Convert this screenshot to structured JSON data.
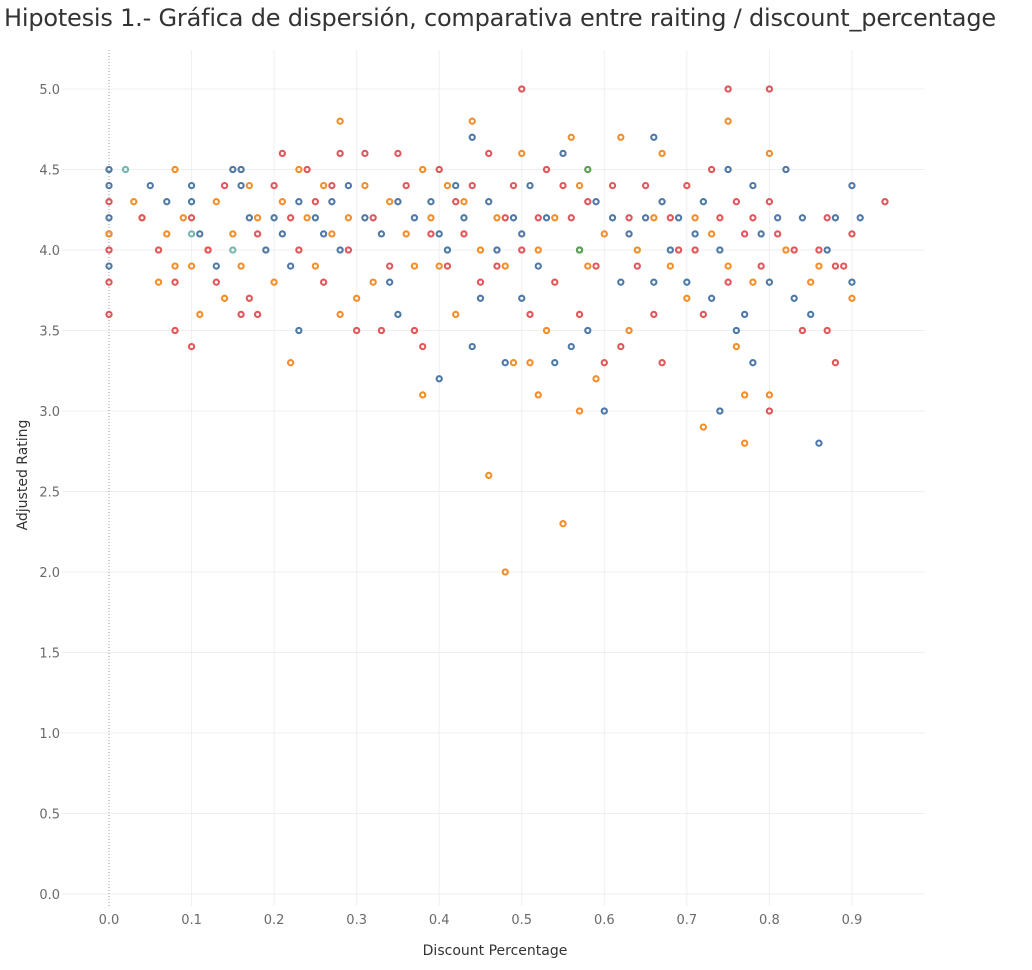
{
  "chart_data": {
    "type": "scatter",
    "title": "Hipotesis 1.- Gráfica de dispersión, comparativa entre raiting / discount_percentage",
    "xlabel": "Discount Percentage",
    "ylabel": "Adjusted Rating",
    "xlim": [
      -0.05,
      0.99
    ],
    "ylim": [
      -0.05,
      5.25
    ],
    "x_ticks": [
      "0.0",
      "0.1",
      "0.2",
      "0.3",
      "0.4",
      "0.5",
      "0.6",
      "0.7",
      "0.8",
      "0.9"
    ],
    "y_ticks": [
      "0.0",
      "0.5",
      "1.0",
      "1.5",
      "2.0",
      "2.5",
      "3.0",
      "3.5",
      "4.0",
      "4.5",
      "5.0"
    ],
    "grid": true,
    "legend": "none",
    "colors": {
      "blue": "#4e79a7",
      "orange": "#f28e2b",
      "red": "#e15759",
      "teal": "#76b7b2",
      "green": "#59a14f"
    },
    "series": [
      {
        "color": "blue",
        "points": [
          [
            0,
            4.5
          ],
          [
            0,
            4.4
          ],
          [
            0,
            4.2
          ],
          [
            0,
            4.1
          ],
          [
            0,
            3.9
          ],
          [
            0.05,
            4.4
          ],
          [
            0.07,
            4.3
          ],
          [
            0.1,
            4.4
          ],
          [
            0.1,
            4.3
          ],
          [
            0.11,
            4.1
          ],
          [
            0.13,
            3.9
          ],
          [
            0.15,
            4.5
          ],
          [
            0.16,
            4.5
          ],
          [
            0.16,
            4.4
          ],
          [
            0.17,
            4.2
          ],
          [
            0.19,
            4.0
          ],
          [
            0.2,
            4.2
          ],
          [
            0.21,
            4.1
          ],
          [
            0.22,
            3.9
          ],
          [
            0.23,
            4.3
          ],
          [
            0.23,
            3.5
          ],
          [
            0.25,
            4.2
          ],
          [
            0.26,
            4.1
          ],
          [
            0.27,
            4.3
          ],
          [
            0.28,
            4.0
          ],
          [
            0.29,
            4.4
          ],
          [
            0.31,
            4.2
          ],
          [
            0.33,
            4.1
          ],
          [
            0.34,
            3.8
          ],
          [
            0.35,
            4.3
          ],
          [
            0.35,
            3.6
          ],
          [
            0.37,
            4.2
          ],
          [
            0.39,
            4.3
          ],
          [
            0.4,
            4.1
          ],
          [
            0.4,
            3.2
          ],
          [
            0.41,
            4.0
          ],
          [
            0.42,
            4.4
          ],
          [
            0.43,
            4.2
          ],
          [
            0.44,
            3.4
          ],
          [
            0.44,
            4.7
          ],
          [
            0.45,
            3.7
          ],
          [
            0.46,
            4.3
          ],
          [
            0.47,
            4.0
          ],
          [
            0.48,
            3.3
          ],
          [
            0.49,
            4.2
          ],
          [
            0.5,
            4.1
          ],
          [
            0.5,
            3.7
          ],
          [
            0.51,
            4.4
          ],
          [
            0.52,
            3.9
          ],
          [
            0.53,
            4.2
          ],
          [
            0.54,
            3.3
          ],
          [
            0.55,
            4.6
          ],
          [
            0.56,
            3.4
          ],
          [
            0.57,
            4.0
          ],
          [
            0.58,
            3.5
          ],
          [
            0.59,
            4.3
          ],
          [
            0.6,
            3.0
          ],
          [
            0.61,
            4.2
          ],
          [
            0.62,
            3.8
          ],
          [
            0.63,
            4.1
          ],
          [
            0.65,
            4.2
          ],
          [
            0.66,
            4.7
          ],
          [
            0.66,
            3.8
          ],
          [
            0.67,
            4.3
          ],
          [
            0.68,
            4.0
          ],
          [
            0.69,
            4.2
          ],
          [
            0.7,
            3.8
          ],
          [
            0.71,
            4.1
          ],
          [
            0.72,
            4.3
          ],
          [
            0.73,
            3.7
          ],
          [
            0.74,
            3.0
          ],
          [
            0.74,
            4.0
          ],
          [
            0.75,
            4.5
          ],
          [
            0.76,
            3.5
          ],
          [
            0.77,
            3.6
          ],
          [
            0.78,
            4.4
          ],
          [
            0.78,
            3.3
          ],
          [
            0.79,
            4.1
          ],
          [
            0.8,
            3.8
          ],
          [
            0.81,
            4.2
          ],
          [
            0.82,
            4.5
          ],
          [
            0.83,
            3.7
          ],
          [
            0.84,
            4.2
          ],
          [
            0.85,
            3.6
          ],
          [
            0.86,
            2.8
          ],
          [
            0.87,
            4.0
          ],
          [
            0.88,
            4.2
          ],
          [
            0.9,
            4.4
          ],
          [
            0.9,
            3.8
          ],
          [
            0.91,
            4.2
          ]
        ]
      },
      {
        "color": "orange",
        "points": [
          [
            0,
            4.1
          ],
          [
            0.03,
            4.3
          ],
          [
            0.04,
            4.2
          ],
          [
            0.06,
            3.8
          ],
          [
            0.07,
            4.1
          ],
          [
            0.08,
            4.5
          ],
          [
            0.08,
            3.9
          ],
          [
            0.09,
            4.2
          ],
          [
            0.1,
            3.9
          ],
          [
            0.11,
            3.6
          ],
          [
            0.12,
            4.0
          ],
          [
            0.13,
            4.3
          ],
          [
            0.14,
            3.7
          ],
          [
            0.15,
            4.1
          ],
          [
            0.16,
            3.9
          ],
          [
            0.17,
            4.4
          ],
          [
            0.18,
            4.2
          ],
          [
            0.2,
            3.8
          ],
          [
            0.21,
            4.3
          ],
          [
            0.22,
            3.3
          ],
          [
            0.23,
            4.5
          ],
          [
            0.24,
            4.2
          ],
          [
            0.25,
            3.9
          ],
          [
            0.26,
            4.4
          ],
          [
            0.27,
            4.1
          ],
          [
            0.28,
            4.8
          ],
          [
            0.28,
            3.6
          ],
          [
            0.29,
            4.2
          ],
          [
            0.3,
            3.7
          ],
          [
            0.31,
            4.4
          ],
          [
            0.32,
            3.8
          ],
          [
            0.34,
            4.3
          ],
          [
            0.36,
            4.1
          ],
          [
            0.37,
            3.9
          ],
          [
            0.38,
            3.1
          ],
          [
            0.38,
            4.5
          ],
          [
            0.39,
            4.2
          ],
          [
            0.4,
            3.9
          ],
          [
            0.41,
            4.4
          ],
          [
            0.42,
            3.6
          ],
          [
            0.43,
            4.3
          ],
          [
            0.44,
            4.8
          ],
          [
            0.45,
            4.0
          ],
          [
            0.46,
            2.6
          ],
          [
            0.47,
            4.2
          ],
          [
            0.48,
            2.0
          ],
          [
            0.48,
            3.9
          ],
          [
            0.49,
            3.3
          ],
          [
            0.5,
            4.6
          ],
          [
            0.51,
            3.3
          ],
          [
            0.52,
            4.0
          ],
          [
            0.52,
            3.1
          ],
          [
            0.53,
            3.5
          ],
          [
            0.54,
            4.2
          ],
          [
            0.55,
            2.3
          ],
          [
            0.56,
            4.7
          ],
          [
            0.57,
            3.0
          ],
          [
            0.57,
            4.4
          ],
          [
            0.58,
            3.9
          ],
          [
            0.59,
            3.2
          ],
          [
            0.6,
            4.1
          ],
          [
            0.62,
            4.7
          ],
          [
            0.63,
            3.5
          ],
          [
            0.64,
            4.0
          ],
          [
            0.66,
            4.2
          ],
          [
            0.67,
            4.6
          ],
          [
            0.68,
            3.9
          ],
          [
            0.7,
            3.7
          ],
          [
            0.71,
            4.2
          ],
          [
            0.72,
            2.9
          ],
          [
            0.73,
            4.1
          ],
          [
            0.75,
            4.8
          ],
          [
            0.75,
            3.9
          ],
          [
            0.76,
            3.4
          ],
          [
            0.77,
            2.8
          ],
          [
            0.77,
            3.1
          ],
          [
            0.78,
            3.8
          ],
          [
            0.8,
            3.1
          ],
          [
            0.8,
            4.6
          ],
          [
            0.82,
            4.0
          ],
          [
            0.85,
            3.8
          ],
          [
            0.86,
            3.9
          ],
          [
            0.9,
            3.7
          ]
        ]
      },
      {
        "color": "red",
        "points": [
          [
            0,
            4.3
          ],
          [
            0,
            4.0
          ],
          [
            0,
            3.8
          ],
          [
            0,
            3.6
          ],
          [
            0.04,
            4.2
          ],
          [
            0.06,
            4.0
          ],
          [
            0.08,
            3.8
          ],
          [
            0.08,
            3.5
          ],
          [
            0.1,
            4.2
          ],
          [
            0.1,
            3.4
          ],
          [
            0.12,
            4.0
          ],
          [
            0.13,
            3.8
          ],
          [
            0.14,
            4.4
          ],
          [
            0.16,
            3.6
          ],
          [
            0.17,
            3.7
          ],
          [
            0.18,
            4.1
          ],
          [
            0.18,
            3.6
          ],
          [
            0.2,
            4.4
          ],
          [
            0.21,
            4.6
          ],
          [
            0.22,
            4.2
          ],
          [
            0.23,
            4.0
          ],
          [
            0.24,
            4.5
          ],
          [
            0.25,
            4.3
          ],
          [
            0.26,
            3.8
          ],
          [
            0.27,
            4.4
          ],
          [
            0.28,
            4.6
          ],
          [
            0.29,
            4.0
          ],
          [
            0.3,
            3.5
          ],
          [
            0.31,
            4.6
          ],
          [
            0.32,
            4.2
          ],
          [
            0.33,
            3.5
          ],
          [
            0.34,
            3.9
          ],
          [
            0.35,
            4.6
          ],
          [
            0.36,
            4.4
          ],
          [
            0.37,
            3.5
          ],
          [
            0.38,
            3.4
          ],
          [
            0.39,
            4.1
          ],
          [
            0.4,
            4.5
          ],
          [
            0.41,
            3.9
          ],
          [
            0.42,
            4.3
          ],
          [
            0.43,
            4.1
          ],
          [
            0.44,
            4.4
          ],
          [
            0.45,
            3.8
          ],
          [
            0.46,
            4.6
          ],
          [
            0.47,
            3.9
          ],
          [
            0.48,
            4.2
          ],
          [
            0.49,
            4.4
          ],
          [
            0.5,
            5.0
          ],
          [
            0.5,
            4.0
          ],
          [
            0.51,
            3.6
          ],
          [
            0.52,
            4.2
          ],
          [
            0.53,
            4.5
          ],
          [
            0.54,
            3.8
          ],
          [
            0.55,
            4.4
          ],
          [
            0.56,
            4.2
          ],
          [
            0.57,
            3.6
          ],
          [
            0.58,
            4.3
          ],
          [
            0.59,
            3.9
          ],
          [
            0.6,
            3.3
          ],
          [
            0.61,
            4.4
          ],
          [
            0.62,
            3.4
          ],
          [
            0.63,
            4.2
          ],
          [
            0.64,
            3.9
          ],
          [
            0.65,
            4.4
          ],
          [
            0.66,
            3.6
          ],
          [
            0.67,
            3.3
          ],
          [
            0.68,
            4.2
          ],
          [
            0.69,
            4.0
          ],
          [
            0.7,
            4.4
          ],
          [
            0.71,
            4.0
          ],
          [
            0.72,
            3.6
          ],
          [
            0.73,
            4.5
          ],
          [
            0.74,
            4.2
          ],
          [
            0.75,
            5.0
          ],
          [
            0.75,
            3.8
          ],
          [
            0.76,
            4.3
          ],
          [
            0.77,
            4.1
          ],
          [
            0.78,
            4.2
          ],
          [
            0.79,
            3.9
          ],
          [
            0.8,
            5.0
          ],
          [
            0.8,
            4.3
          ],
          [
            0.8,
            3.0
          ],
          [
            0.81,
            4.1
          ],
          [
            0.83,
            4.0
          ],
          [
            0.84,
            3.5
          ],
          [
            0.86,
            4.0
          ],
          [
            0.87,
            4.2
          ],
          [
            0.87,
            3.5
          ],
          [
            0.88,
            3.9
          ],
          [
            0.88,
            3.3
          ],
          [
            0.89,
            3.9
          ],
          [
            0.9,
            4.1
          ],
          [
            0.94,
            4.3
          ]
        ]
      },
      {
        "color": "teal",
        "points": [
          [
            0.02,
            4.5
          ],
          [
            0.1,
            4.1
          ],
          [
            0.15,
            4.0
          ]
        ]
      },
      {
        "color": "green",
        "points": [
          [
            0.58,
            4.5
          ],
          [
            0.57,
            4.0
          ]
        ]
      }
    ]
  }
}
